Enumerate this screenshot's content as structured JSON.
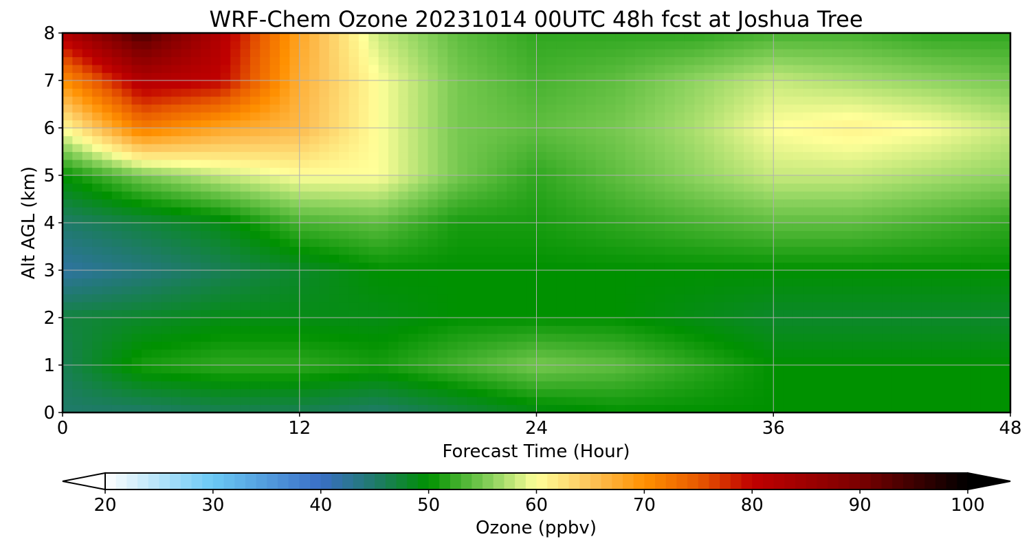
{
  "chart_data": {
    "type": "heatmap",
    "title": "WRF-Chem Ozone  20231014 00UTC 48h fcst at Joshua Tree",
    "xlabel": "Forecast Time (Hour)",
    "ylabel": "Alt AGL (km)",
    "xlim": [
      0,
      48
    ],
    "ylim": [
      0,
      8
    ],
    "x_ticks": [
      0,
      12,
      24,
      36,
      48
    ],
    "y_ticks": [
      0,
      1,
      2,
      3,
      4,
      5,
      6,
      7,
      8
    ],
    "grid": true,
    "x_hours": [
      0,
      4,
      8,
      12,
      16,
      20,
      24,
      28,
      32,
      36,
      40,
      44,
      48
    ],
    "y_km": [
      0,
      1,
      2,
      3,
      4,
      5,
      6,
      7,
      8
    ],
    "values_ppbv": [
      [
        45,
        45,
        46,
        46,
        45,
        47,
        49,
        50,
        50,
        50,
        50,
        50,
        50
      ],
      [
        46,
        51,
        52,
        52,
        51,
        53,
        55,
        54,
        52,
        50,
        50,
        50,
        50
      ],
      [
        47,
        48,
        49,
        49,
        49,
        50,
        50,
        50,
        49,
        48,
        48,
        48,
        48
      ],
      [
        42,
        44,
        46,
        48,
        50,
        50,
        50,
        50,
        50,
        50,
        50,
        50,
        50
      ],
      [
        45,
        47,
        49,
        53,
        54,
        51,
        51,
        52,
        53,
        54,
        54,
        53,
        52
      ],
      [
        50,
        55,
        58,
        60,
        60,
        55,
        52,
        54,
        56,
        58,
        58,
        57,
        56
      ],
      [
        60,
        72,
        68,
        66,
        60,
        55,
        54,
        55,
        57,
        60,
        61,
        60,
        58
      ],
      [
        70,
        82,
        80,
        67,
        60,
        55,
        53,
        54,
        56,
        58,
        57,
        56,
        55
      ],
      [
        82,
        94,
        82,
        68,
        58,
        54,
        52,
        52,
        52,
        53,
        53,
        52,
        52
      ]
    ],
    "colorbar": {
      "label": "Ozone  (ppbv)",
      "ticks": [
        20,
        30,
        40,
        50,
        60,
        70,
        80,
        90,
        100
      ],
      "range": [
        20,
        100
      ],
      "extend": "both",
      "stops": [
        {
          "v": 20,
          "c": "#ffffff"
        },
        {
          "v": 30,
          "c": "#6ac8f4"
        },
        {
          "v": 40,
          "c": "#3a6fc6"
        },
        {
          "v": 45,
          "c": "#1f7a6a"
        },
        {
          "v": 50,
          "c": "#009100"
        },
        {
          "v": 56,
          "c": "#8fd460"
        },
        {
          "v": 60,
          "c": "#ffff99"
        },
        {
          "v": 65,
          "c": "#fdc45a"
        },
        {
          "v": 70,
          "c": "#ff9000"
        },
        {
          "v": 75,
          "c": "#e85a00"
        },
        {
          "v": 80,
          "c": "#c00000"
        },
        {
          "v": 90,
          "c": "#7a0000"
        },
        {
          "v": 100,
          "c": "#000000"
        }
      ],
      "under_color": "#ffffff",
      "over_color": "#000000"
    }
  }
}
